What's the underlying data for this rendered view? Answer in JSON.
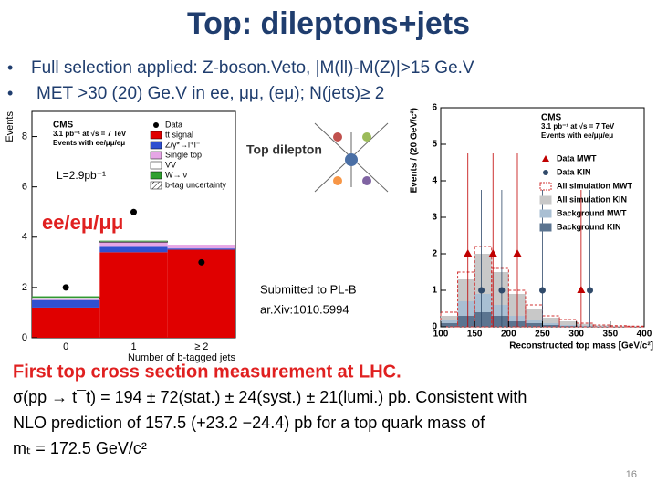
{
  "slide": {
    "title": "Top: dileptons+jets",
    "bullets": [
      "Full selection applied: Z-boson.Veto, |M(ll)-M(Z)|>15 Ge.V",
      "MET >30 (20) Ge.V in ee, μμ, (eμ); N(jets)≥ 2"
    ],
    "inset_title": "Top dilepton",
    "lumi_label": "L=2.9pb⁻¹",
    "channel_label": "ee/eμ/μμ",
    "submitted": [
      "Submitted to PL-B",
      "ar.Xiv:1010.5994"
    ],
    "headline": "First top cross section measurement at LHC.",
    "body": [
      "σ(pp → t¯t) = 194 ± 72(stat.) ± 24(syst.) ± 21(lumi.) pb. Consistent with",
      "NLO prediction of 157.5 (+23.2 −24.4) pb for a top quark mass of",
      "mₜ = 172.5 GeV/c²"
    ],
    "page_number": "16"
  },
  "chart_data": [
    {
      "type": "stacked-bar",
      "header": [
        "CMS",
        "3.1 pb⁻¹ at √s = 7 TeV",
        "Events with ee/μμ/eμ"
      ],
      "xlabel": "Number of b-tagged jets",
      "ylabel": "Events",
      "categories": [
        "0",
        "1",
        "≥ 2"
      ],
      "ylim": [
        0,
        9
      ],
      "yticks": [
        0,
        2,
        4,
        6,
        8
      ],
      "data": {
        "name": "Data",
        "color": "#000000",
        "values": [
          2,
          5,
          3
        ]
      },
      "series": [
        {
          "name": "tt signal",
          "color": "#e00000",
          "values": [
            1.2,
            3.4,
            3.5
          ]
        },
        {
          "name": "Z/γ*→l⁺l⁻",
          "color": "#3050d0",
          "values": [
            0.3,
            0.25,
            0.05
          ]
        },
        {
          "name": "Single top",
          "color": "#e6a6e6",
          "values": [
            0.05,
            0.15,
            0.15
          ]
        },
        {
          "name": "VV",
          "color": "#ffffff",
          "values": [
            0.05,
            0.03,
            0
          ]
        },
        {
          "name": "W→lν",
          "color": "#30a030",
          "values": [
            0.05,
            0.03,
            0
          ]
        }
      ],
      "uncertainty_label": "b-tag uncertainty"
    },
    {
      "type": "histogram",
      "header": [
        "CMS",
        "3.1 pb⁻¹ at √s = 7 TeV",
        "Events with ee/μμ/eμ"
      ],
      "xlabel": "Reconstructed top mass [GeV/c²]",
      "ylabel": "Events / (20 GeV/c²)",
      "bins": [
        100,
        125,
        150,
        175,
        200,
        225,
        250,
        275,
        300,
        325,
        350,
        375,
        400
      ],
      "xlim": [
        100,
        400
      ],
      "xticks": [
        100,
        150,
        200,
        250,
        300,
        350,
        400
      ],
      "ylim": [
        0,
        6
      ],
      "yticks": [
        0,
        1,
        2,
        3,
        4,
        5,
        6
      ],
      "series": [
        {
          "name": "Data MWT",
          "color": "#c00000",
          "style": "triangle",
          "x": [
            140,
            177,
            213,
            307
          ],
          "values": [
            2,
            2,
            2,
            1
          ]
        },
        {
          "name": "Data KIN",
          "color": "#304a6a",
          "style": "circle",
          "x": [
            160,
            190,
            250,
            320
          ],
          "values": [
            1,
            1,
            1,
            1
          ]
        },
        {
          "name": "All simulation MWT",
          "color": "#d03030",
          "style": "outline",
          "values": [
            0.4,
            1.5,
            2.2,
            1.6,
            1.0,
            0.6,
            0.3,
            0.2,
            0.1,
            0.05,
            0.03,
            0.02
          ]
        },
        {
          "name": "All simulation KIN",
          "color": "#c8c8c8",
          "style": "fill",
          "values": [
            0.3,
            1.3,
            2.0,
            1.5,
            0.9,
            0.5,
            0.25,
            0.15,
            0.08,
            0.04,
            0.02,
            0.01
          ]
        },
        {
          "name": "Background MWT",
          "color": "#a9bfd3",
          "style": "fill",
          "values": [
            0.2,
            0.7,
            0.9,
            0.6,
            0.3,
            0.2,
            0.1,
            0.05,
            0.03,
            0.02,
            0.01,
            0.01
          ]
        },
        {
          "name": "Background KIN",
          "color": "#5b7490",
          "style": "fill",
          "values": [
            0.1,
            0.3,
            0.4,
            0.3,
            0.15,
            0.1,
            0.05,
            0.02,
            0.01,
            0,
            0,
            0
          ]
        }
      ]
    }
  ]
}
